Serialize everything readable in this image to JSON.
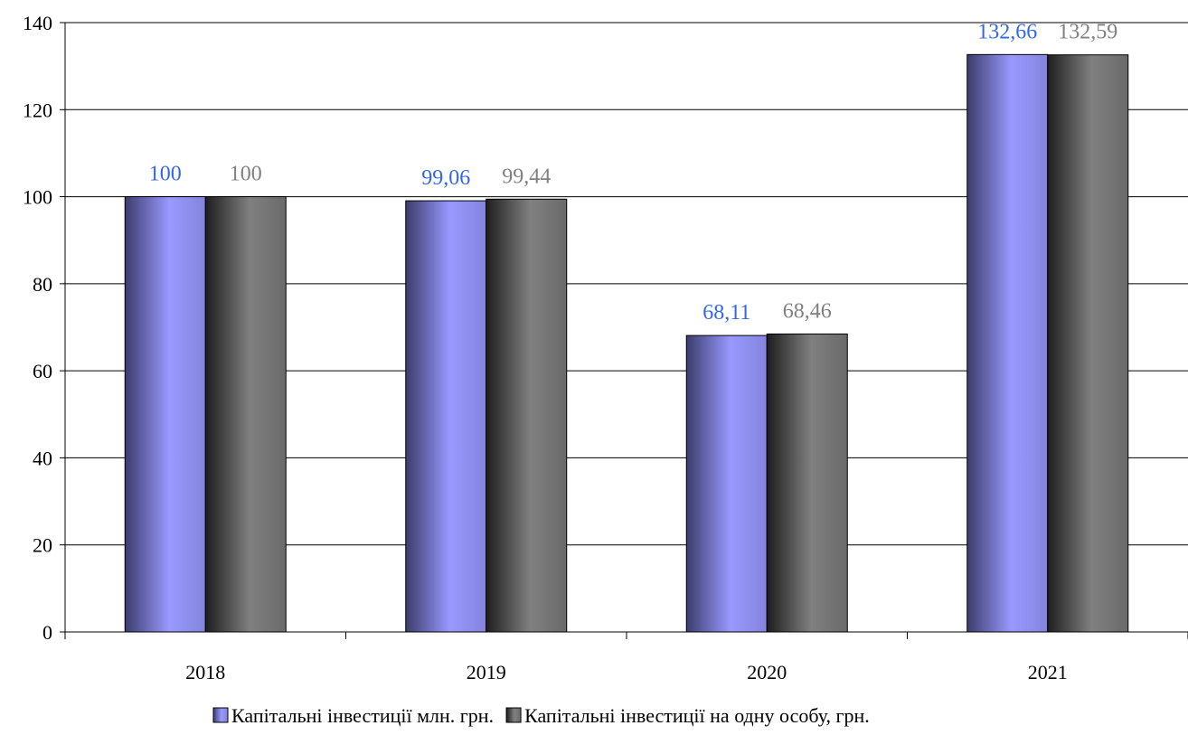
{
  "chart_data": {
    "type": "bar",
    "categories": [
      "2018",
      "2019",
      "2020",
      "2021"
    ],
    "series": [
      {
        "name": "Капітальні інвестиції млн. грн.",
        "values": [
          100,
          99.06,
          68.11,
          132.66
        ],
        "labels": [
          "100",
          "99,06",
          "68,11",
          "132,66"
        ],
        "color": "#9999ff",
        "label_color": "#3366ee"
      },
      {
        "name": "Капітальні інвестиції на одну особу, грн.",
        "values": [
          100,
          99.44,
          68.46,
          132.59
        ],
        "labels": [
          "100",
          "99,44",
          "68,46",
          "132,59"
        ],
        "color": "#808080",
        "label_color": "#808080"
      }
    ],
    "y_ticks": [
      "0",
      "20",
      "40",
      "60",
      "80",
      "100",
      "120",
      "140"
    ],
    "ylim": [
      0,
      140
    ],
    "grid": true,
    "legend_position": "bottom"
  }
}
